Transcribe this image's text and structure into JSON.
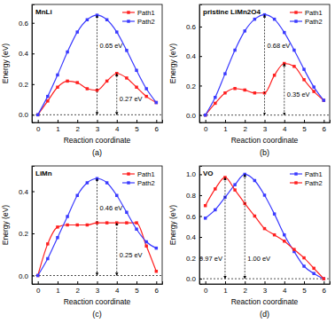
{
  "chart_data": [
    {
      "type": "line",
      "title": "MnLi",
      "panel_label": "(a)",
      "x_label": "Reaction coordinate",
      "y_label": "Energy (eV)",
      "xlim": [
        -0.3,
        6.3
      ],
      "ylim": [
        -0.05,
        0.72
      ],
      "xticks": [
        0,
        1,
        2,
        3,
        4,
        5,
        6
      ],
      "yticks": [
        {
          "value": 0,
          "label": "0.0"
        },
        0.2,
        0.4,
        0.6
      ],
      "legend": "upper right",
      "marker": "square",
      "series": [
        {
          "name": "Path1",
          "color": "#ff2020",
          "x": [
            0,
            0.5,
            1,
            1.5,
            2,
            2.5,
            3,
            3.5,
            4,
            4.5,
            5,
            5.5,
            6
          ],
          "values": [
            0,
            0.09,
            0.18,
            0.22,
            0.21,
            0.17,
            0.16,
            0.22,
            0.27,
            0.24,
            0.18,
            0.12,
            0.08
          ]
        },
        {
          "name": "Path2",
          "color": "#3a3aff",
          "x": [
            0,
            0.5,
            1,
            1.5,
            2,
            2.5,
            3,
            3.5,
            4,
            4.5,
            5,
            5.5,
            6
          ],
          "values": [
            0,
            0.12,
            0.26,
            0.41,
            0.54,
            0.62,
            0.65,
            0.62,
            0.54,
            0.42,
            0.29,
            0.17,
            0.08
          ]
        }
      ],
      "annotations": [
        {
          "text": "0.65 eV",
          "x": 3,
          "y": 0.65
        },
        {
          "text": "0.27 eV",
          "x": 4,
          "y": 0.27
        }
      ]
    },
    {
      "type": "line",
      "title": "pristine LiMn2O4",
      "panel_label": "(b)",
      "x_label": "Reaction coordinate",
      "y_label": "Energy (eV)",
      "xlim": [
        -0.3,
        6.3
      ],
      "ylim": [
        -0.05,
        0.75
      ],
      "xticks": [
        0,
        1,
        2,
        3,
        4,
        5,
        6
      ],
      "yticks": [
        {
          "value": 0,
          "label": "0.0"
        },
        0.2,
        0.4,
        0.6
      ],
      "legend": "upper right",
      "marker": "square",
      "series": [
        {
          "name": "Path1",
          "color": "#ff2020",
          "x": [
            0,
            0.5,
            1,
            1.5,
            2,
            2.5,
            3,
            3.5,
            4,
            4.5,
            5,
            5.5,
            6
          ],
          "values": [
            0,
            0.08,
            0.15,
            0.18,
            0.17,
            0.15,
            0.15,
            0.27,
            0.35,
            0.33,
            0.24,
            0.16,
            0.1
          ]
        },
        {
          "name": "Path2",
          "color": "#3a3aff",
          "x": [
            0,
            0.5,
            1,
            1.5,
            2,
            2.5,
            3,
            3.5,
            4,
            4.5,
            5,
            5.5,
            6
          ],
          "values": [
            0,
            0.12,
            0.28,
            0.44,
            0.57,
            0.65,
            0.68,
            0.65,
            0.56,
            0.44,
            0.31,
            0.19,
            0.1
          ]
        }
      ],
      "annotations": [
        {
          "text": "0.68 eV",
          "x": 3,
          "y": 0.68
        },
        {
          "text": "0.35 eV",
          "x": 4,
          "y": 0.35
        }
      ]
    },
    {
      "type": "line",
      "title": "LiMn",
      "panel_label": "(c)",
      "x_label": "Reaction coordinate",
      "y_label": "Energy (eV)",
      "xlim": [
        -0.3,
        6.3
      ],
      "ylim": [
        -0.04,
        0.52
      ],
      "xticks": [
        0,
        1,
        2,
        3,
        4,
        5,
        6
      ],
      "yticks": [
        {
          "value": 0,
          "label": "0.0"
        },
        0.2,
        0.4
      ],
      "legend": "upper right",
      "marker": "square",
      "series": [
        {
          "name": "Path1",
          "color": "#ff2020",
          "x": [
            0,
            0.5,
            1,
            1.5,
            2,
            2.5,
            3,
            3.5,
            4,
            4.5,
            5,
            5.5,
            6
          ],
          "values": [
            0,
            0.15,
            0.23,
            0.24,
            0.24,
            0.24,
            0.25,
            0.25,
            0.25,
            0.25,
            0.25,
            0.14,
            0.02
          ]
        },
        {
          "name": "Path2",
          "color": "#3a3aff",
          "x": [
            0,
            0.5,
            1,
            1.5,
            2,
            2.5,
            3,
            3.5,
            4,
            4.5,
            5,
            5.5,
            6
          ],
          "values": [
            0,
            0.08,
            0.18,
            0.28,
            0.38,
            0.44,
            0.46,
            0.44,
            0.38,
            0.3,
            0.22,
            0.16,
            0.13
          ]
        }
      ],
      "annotations": [
        {
          "text": "0.46 eV",
          "x": 3,
          "y": 0.46
        },
        {
          "text": "0.25 eV",
          "x": 4,
          "y": 0.25
        }
      ]
    },
    {
      "type": "line",
      "title": "VO",
      "panel_label": "(d)",
      "x_label": "Reaction coordinate",
      "y_label": "Energy (eV)",
      "xlim": [
        -0.3,
        6.3
      ],
      "ylim": [
        -0.05,
        1.08
      ],
      "xticks": [
        0,
        1,
        2,
        3,
        4,
        5,
        6
      ],
      "yticks": [
        {
          "value": 0,
          "label": "0.0"
        },
        0.2,
        0.4,
        0.6,
        0.8,
        {
          "value": 1,
          "label": "1.0"
        }
      ],
      "legend": "upper right",
      "marker": "square",
      "series": [
        {
          "name": "Path1",
          "color": "#3a3aff",
          "x": [
            0,
            0.5,
            1,
            1.5,
            2,
            2.5,
            3,
            3.5,
            4,
            4.5,
            5,
            5.5,
            6
          ],
          "values": [
            0.58,
            0.66,
            0.78,
            0.9,
            1.0,
            0.94,
            0.8,
            0.62,
            0.42,
            0.26,
            0.12,
            0.05,
            0
          ]
        },
        {
          "name": "Path2",
          "color": "#ff2020",
          "x": [
            0,
            0.5,
            1,
            1.5,
            2,
            2.5,
            3,
            3.5,
            4,
            4.5,
            5,
            5.5,
            6
          ],
          "values": [
            0.7,
            0.86,
            0.97,
            0.85,
            0.72,
            0.6,
            0.48,
            0.42,
            0.36,
            0.28,
            0.2,
            0.1,
            0
          ]
        }
      ],
      "annotations": [
        {
          "text": "0.97 eV",
          "x": 1,
          "y": 0.97
        },
        {
          "text": "1.00 eV",
          "x": 2,
          "y": 1.0
        }
      ]
    }
  ]
}
